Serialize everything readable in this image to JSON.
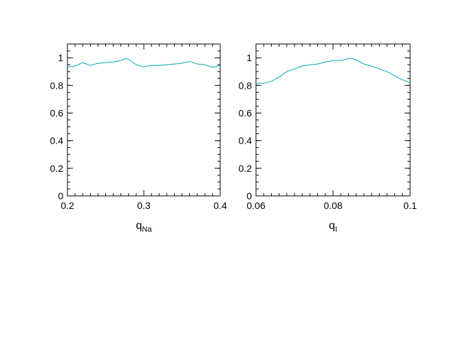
{
  "chart_data": [
    {
      "type": "line",
      "xlabel": "q",
      "xlabel_sub": "Na",
      "ylabel": "",
      "xlim": [
        0.2,
        0.4
      ],
      "ylim": [
        0,
        1.1
      ],
      "x_ticks": [
        0.2,
        0.3,
        0.4
      ],
      "x_tick_labels": [
        "0.2",
        "0.3",
        "0.4"
      ],
      "x_minor_step": 0.01,
      "y_ticks": [
        0,
        0.2,
        0.4,
        0.6,
        0.8,
        1
      ],
      "y_tick_labels": [
        "0",
        "0.2",
        "0.4",
        "0.6",
        "0.8",
        "1"
      ],
      "y_minor_step": 0.05,
      "grid": false,
      "color": "#00a9b5",
      "series": [
        {
          "x": [
            0.2,
            0.21,
            0.22,
            0.23,
            0.24,
            0.25,
            0.26,
            0.27,
            0.275,
            0.28,
            0.29,
            0.3,
            0.31,
            0.32,
            0.33,
            0.34,
            0.35,
            0.36,
            0.37,
            0.38,
            0.39,
            0.4
          ],
          "y": [
            0.935,
            0.94,
            0.965,
            0.945,
            0.96,
            0.965,
            0.97,
            0.98,
            0.995,
            0.99,
            0.95,
            0.935,
            0.945,
            0.945,
            0.95,
            0.955,
            0.96,
            0.975,
            0.955,
            0.95,
            0.93,
            0.945
          ]
        }
      ]
    },
    {
      "type": "line",
      "xlabel": "q",
      "xlabel_sub": "I",
      "ylabel": "",
      "xlim": [
        0.06,
        0.1
      ],
      "ylim": [
        0,
        1.1
      ],
      "x_ticks": [
        0.06,
        0.08,
        0.1
      ],
      "x_tick_labels": [
        "0.06",
        "0.08",
        "0.1"
      ],
      "x_minor_step": 0.002,
      "y_ticks": [
        0,
        0.2,
        0.4,
        0.6,
        0.8,
        1
      ],
      "y_tick_labels": [
        "0",
        "0.2",
        "0.4",
        "0.6",
        "0.8",
        "1"
      ],
      "y_minor_step": 0.05,
      "grid": false,
      "color": "#00a9b5",
      "series": [
        {
          "x": [
            0.06,
            0.062,
            0.064,
            0.066,
            0.068,
            0.07,
            0.072,
            0.074,
            0.076,
            0.078,
            0.08,
            0.082,
            0.084,
            0.085,
            0.086,
            0.088,
            0.09,
            0.092,
            0.094,
            0.096,
            0.098,
            0.1
          ],
          "y": [
            0.815,
            0.815,
            0.83,
            0.86,
            0.9,
            0.92,
            0.94,
            0.95,
            0.955,
            0.97,
            0.98,
            0.98,
            0.995,
            0.995,
            0.985,
            0.955,
            0.94,
            0.92,
            0.9,
            0.87,
            0.84,
            0.82
          ]
        }
      ]
    }
  ]
}
